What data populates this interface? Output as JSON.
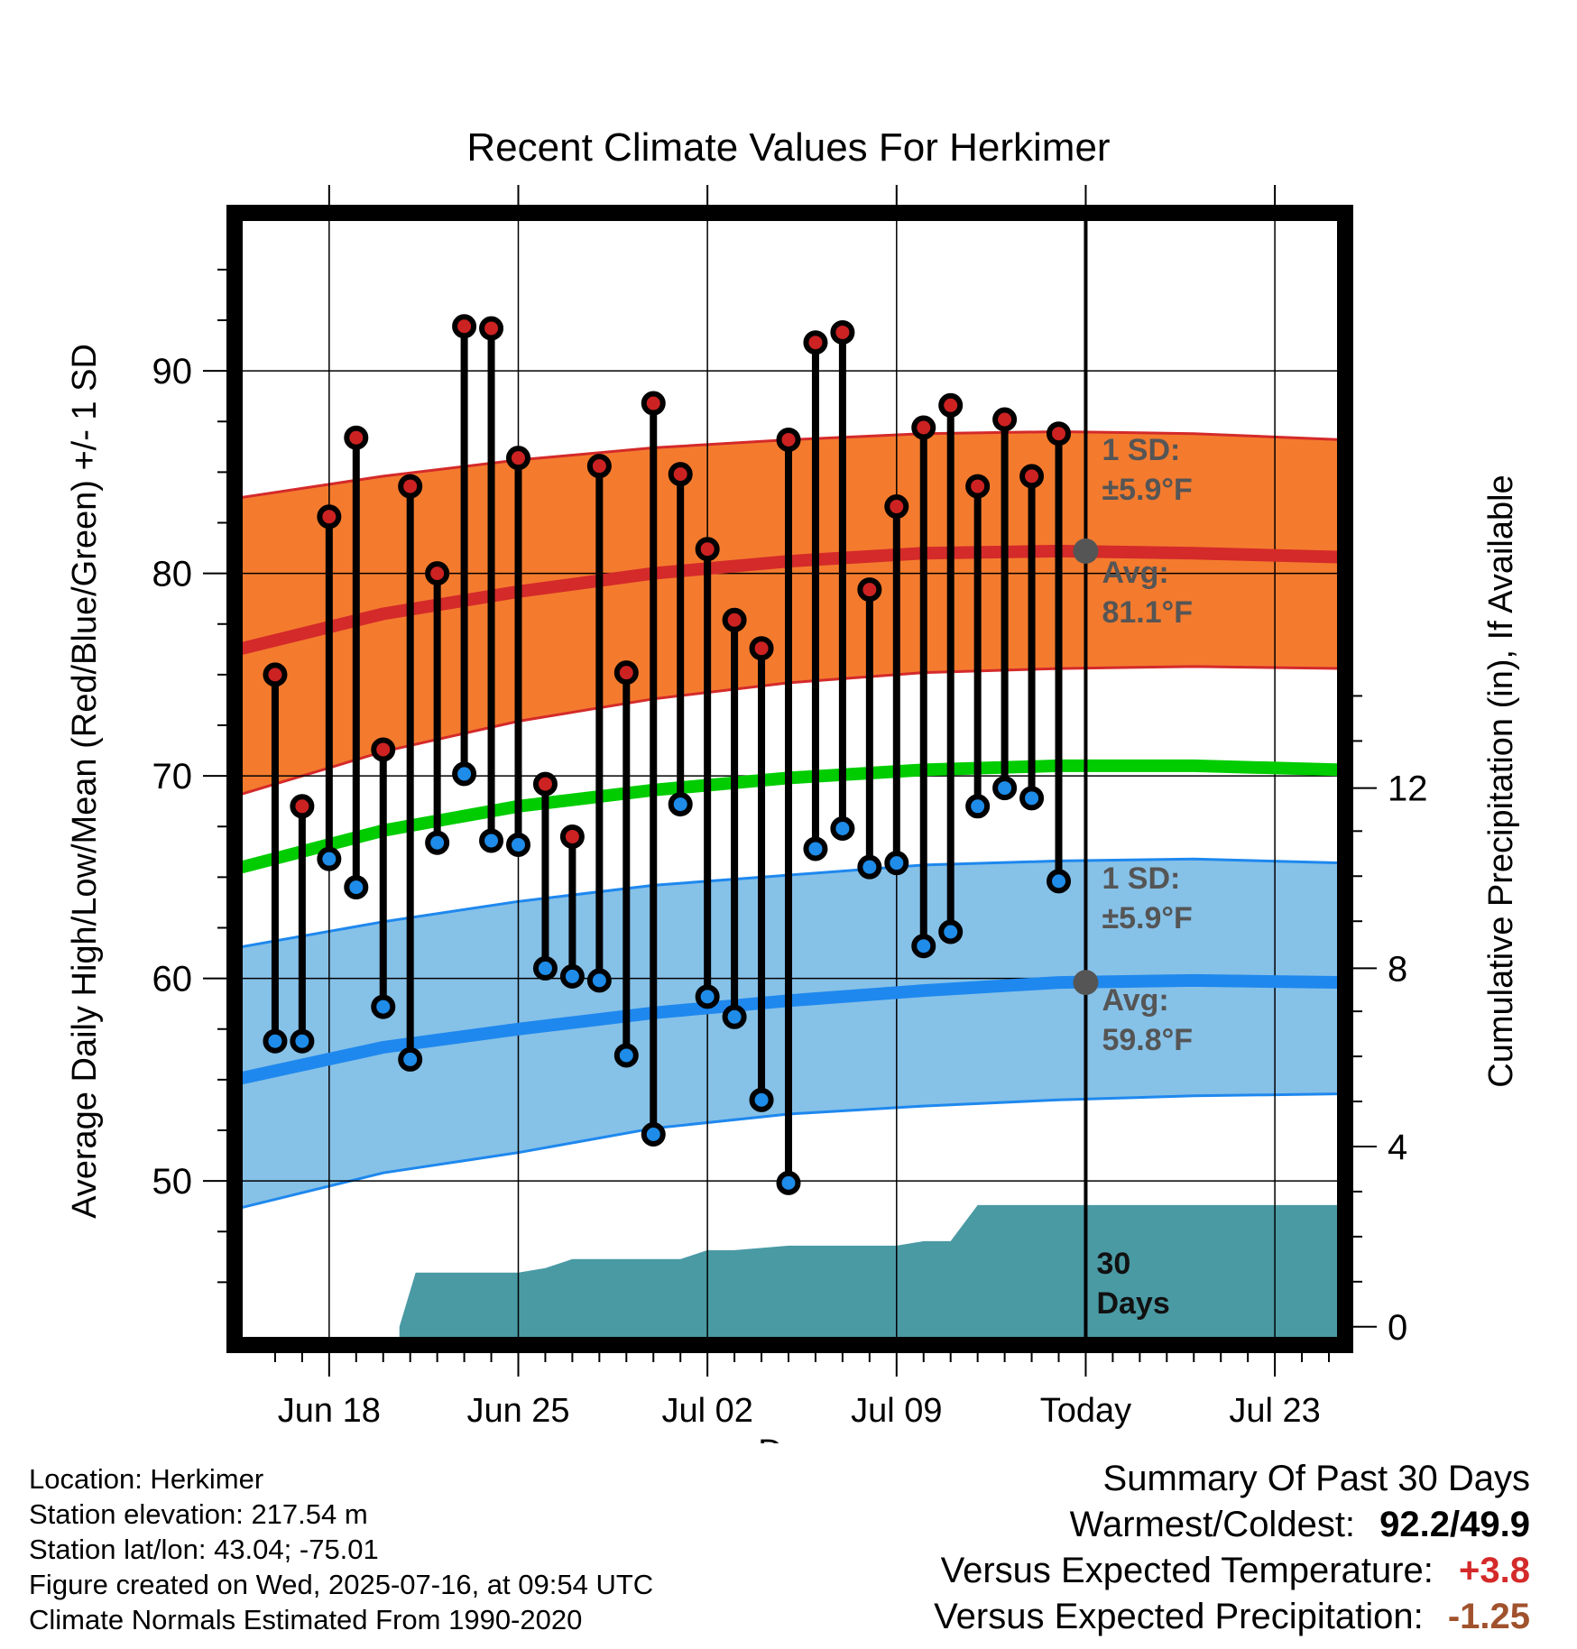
{
  "chart_data": {
    "type": "line",
    "title": "Recent Climate Values For Herkimer",
    "xlabel": "Day",
    "ylabel_left": "Average Daily High/Low/Mean (Red/Blue/Green) +/- 1 SD",
    "ylabel_right": "Cumulative Precipitation (in), If Available",
    "x_tick_labels": [
      "Jun 18",
      "Jun 25",
      "Jul 02",
      "Jul 09",
      "Today",
      "Jul 23"
    ],
    "x_tick_days": [
      3,
      10,
      17,
      24,
      31,
      38
    ],
    "x_range_days": [
      -0.2,
      40.3
    ],
    "y_left_range": [
      42.3,
      97.4
    ],
    "y_left_ticks": [
      50,
      60,
      70,
      80,
      90
    ],
    "y_right_ticks": [
      0,
      4,
      8,
      12
    ],
    "y_right_ticks_pos_in_left_units": [
      42.8,
      51.7,
      60.5,
      69.4
    ],
    "grid": true,
    "dates": [
      "Jun 16",
      "Jun 17",
      "Jun 18",
      "Jun 19",
      "Jun 20",
      "Jun 21",
      "Jun 22",
      "Jun 23",
      "Jun 24",
      "Jun 25",
      "Jun 26",
      "Jun 27",
      "Jun 28",
      "Jun 29",
      "Jun 30",
      "Jul 01",
      "Jul 02",
      "Jul 03",
      "Jul 04",
      "Jul 05",
      "Jul 06",
      "Jul 07",
      "Jul 08",
      "Jul 09",
      "Jul 10",
      "Jul 11",
      "Jul 12",
      "Jul 13",
      "Jul 14",
      "Jul 15"
    ],
    "series": [
      {
        "name": "High",
        "color": "#cc2222",
        "values": [
          75.0,
          68.5,
          82.8,
          86.7,
          71.3,
          84.3,
          80.0,
          92.2,
          92.1,
          85.7,
          69.6,
          67.0,
          85.3,
          75.1,
          88.4,
          84.9,
          81.2,
          77.7,
          76.3,
          86.6,
          91.4,
          91.9,
          79.2,
          83.3,
          87.2,
          88.3,
          84.3,
          87.6,
          84.8,
          86.9
        ]
      },
      {
        "name": "Low",
        "color": "#1e8ce8",
        "values": [
          56.9,
          56.9,
          65.9,
          64.5,
          58.6,
          56.0,
          66.7,
          70.1,
          66.8,
          66.6,
          60.5,
          60.1,
          59.9,
          56.2,
          52.3,
          68.6,
          59.1,
          58.1,
          54.0,
          49.9,
          66.4,
          67.4,
          65.5,
          65.7,
          61.6,
          62.3,
          68.5,
          69.4,
          68.9,
          64.8
        ]
      }
    ],
    "normals_x": [
      -0.5,
      5,
      10,
      15,
      20,
      25,
      30,
      35,
      40.5
    ],
    "normal_high": [
      76.2,
      78.0,
      79.1,
      80.0,
      80.6,
      81.0,
      81.1,
      81.0,
      80.8
    ],
    "normal_low": [
      55.0,
      56.6,
      57.5,
      58.3,
      58.9,
      59.4,
      59.8,
      59.9,
      59.8
    ],
    "normal_mean": [
      65.4,
      67.3,
      68.5,
      69.3,
      69.9,
      70.3,
      70.5,
      70.5,
      70.3
    ],
    "high_sd_band": {
      "upper": [
        83.7,
        84.8,
        85.6,
        86.2,
        86.6,
        86.9,
        87.0,
        86.9,
        86.6
      ],
      "lower": [
        69.0,
        71.2,
        72.7,
        73.8,
        74.6,
        75.1,
        75.3,
        75.4,
        75.3
      ]
    },
    "low_sd_band": {
      "upper": [
        61.5,
        62.8,
        63.8,
        64.6,
        65.1,
        65.6,
        65.8,
        65.9,
        65.7
      ],
      "lower": [
        48.6,
        50.4,
        51.4,
        52.6,
        53.3,
        53.7,
        54.0,
        54.2,
        54.3
      ]
    },
    "precip_x": [
      5.6,
      6.2,
      10,
      11,
      12,
      15,
      16,
      17,
      18,
      20,
      22,
      24,
      25,
      26,
      27,
      28,
      31,
      35,
      40.5
    ],
    "precip_in": [
      0.0,
      1.2,
      1.2,
      1.3,
      1.5,
      1.5,
      1.5,
      1.7,
      1.7,
      1.8,
      1.8,
      1.8,
      1.9,
      1.9,
      2.7,
      2.7,
      2.7,
      2.7,
      2.7
    ],
    "today_day": 31,
    "annotations": {
      "high_sd_l1": "1 SD:",
      "high_sd_l2": "±5.9°F",
      "high_avg_l1": "Avg:",
      "high_avg_l2": "81.1°F",
      "low_sd_l1": "1 SD:",
      "low_sd_l2": "±5.9°F",
      "low_avg_l1": "Avg:",
      "low_avg_l2": "59.8°F",
      "days_l1": "30",
      "days_l2": "Days"
    },
    "colors": {
      "high_band": "#f47b2e",
      "high_line": "#d42a2a",
      "low_band": "#86c1e8",
      "low_line": "#1e88ee",
      "mean_line": "#00cc00",
      "precip": "#4a9aa4",
      "annotation": "#555555",
      "marker_high": "#cc2222",
      "marker_low": "#1e8ce8"
    }
  },
  "info": {
    "location": "Location: Herkimer",
    "elevation": "Station elevation: 217.54 m",
    "latlon": "Station lat/lon: 43.04; -75.01",
    "created": "Figure created on Wed, 2025-07-16, at 09:54 UTC",
    "normals": "Climate Normals Estimated From 1990-2020"
  },
  "summary": {
    "title": "Summary Of Past 30 Days",
    "warm_cold_label": "Warmest/Coldest:",
    "warm_cold_value": "92.2/49.9",
    "temp_label": "Versus Expected Temperature:",
    "temp_value": "+3.8",
    "temp_color": "#d42a2a",
    "precip_label": "Versus Expected Precipitation:",
    "precip_value": "-1.25",
    "precip_color": "#a0522d"
  }
}
